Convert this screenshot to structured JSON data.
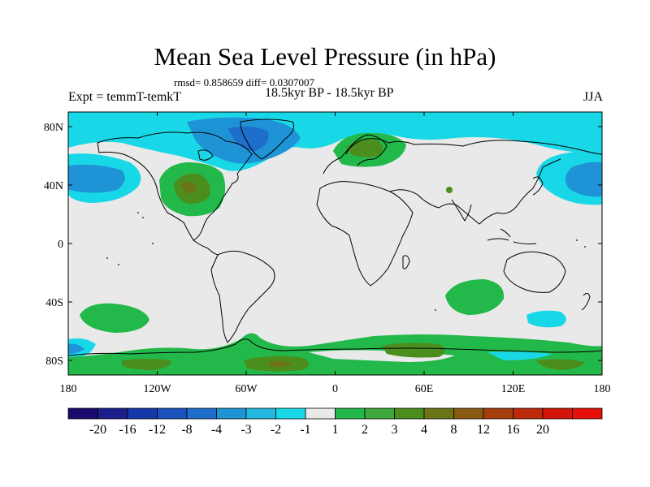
{
  "title": "Mean Sea Level Pressure (in hPa)",
  "stats_line": "rmsd= 0.858659 diff= 0.0307007",
  "subtitle": "18.5kyr BP - 18.5kyr BP",
  "left_label": "Expt = temmT-temkT",
  "right_label": "JJA",
  "lat_labels": [
    "80N",
    "40N",
    "0",
    "40S",
    "80S"
  ],
  "lon_labels": [
    "180",
    "120W",
    "60W",
    "0",
    "60E",
    "120E",
    "180"
  ],
  "colorbar": {
    "colors": [
      "#1a0a6e",
      "#1c1e8c",
      "#1637a8",
      "#1a52be",
      "#1f6ecc",
      "#1e94d6",
      "#24b8e0",
      "#18d8e8",
      "#e9e9e9",
      "#22b84a",
      "#3fa83a",
      "#4b8e1e",
      "#6b7416",
      "#8a5a12",
      "#a5400e",
      "#bd2a0a",
      "#d3150a",
      "#e80f0a"
    ],
    "labels": [
      "-20",
      "-16",
      "-12",
      "-8",
      "-4",
      "-3",
      "-2",
      "-1",
      "1",
      "2",
      "3",
      "4",
      "8",
      "12",
      "16",
      "20"
    ]
  },
  "chart_data": {
    "type": "map",
    "variable": "Mean Sea Level Pressure difference",
    "units": "hPa",
    "season": "JJA",
    "contour_levels": [
      -20,
      -16,
      -12,
      -8,
      -4,
      -3,
      -2,
      -1,
      1,
      2,
      3,
      4,
      8,
      12,
      16,
      20
    ],
    "lon_range": [
      -180,
      180
    ],
    "lat_range": [
      -90,
      90
    ]
  }
}
